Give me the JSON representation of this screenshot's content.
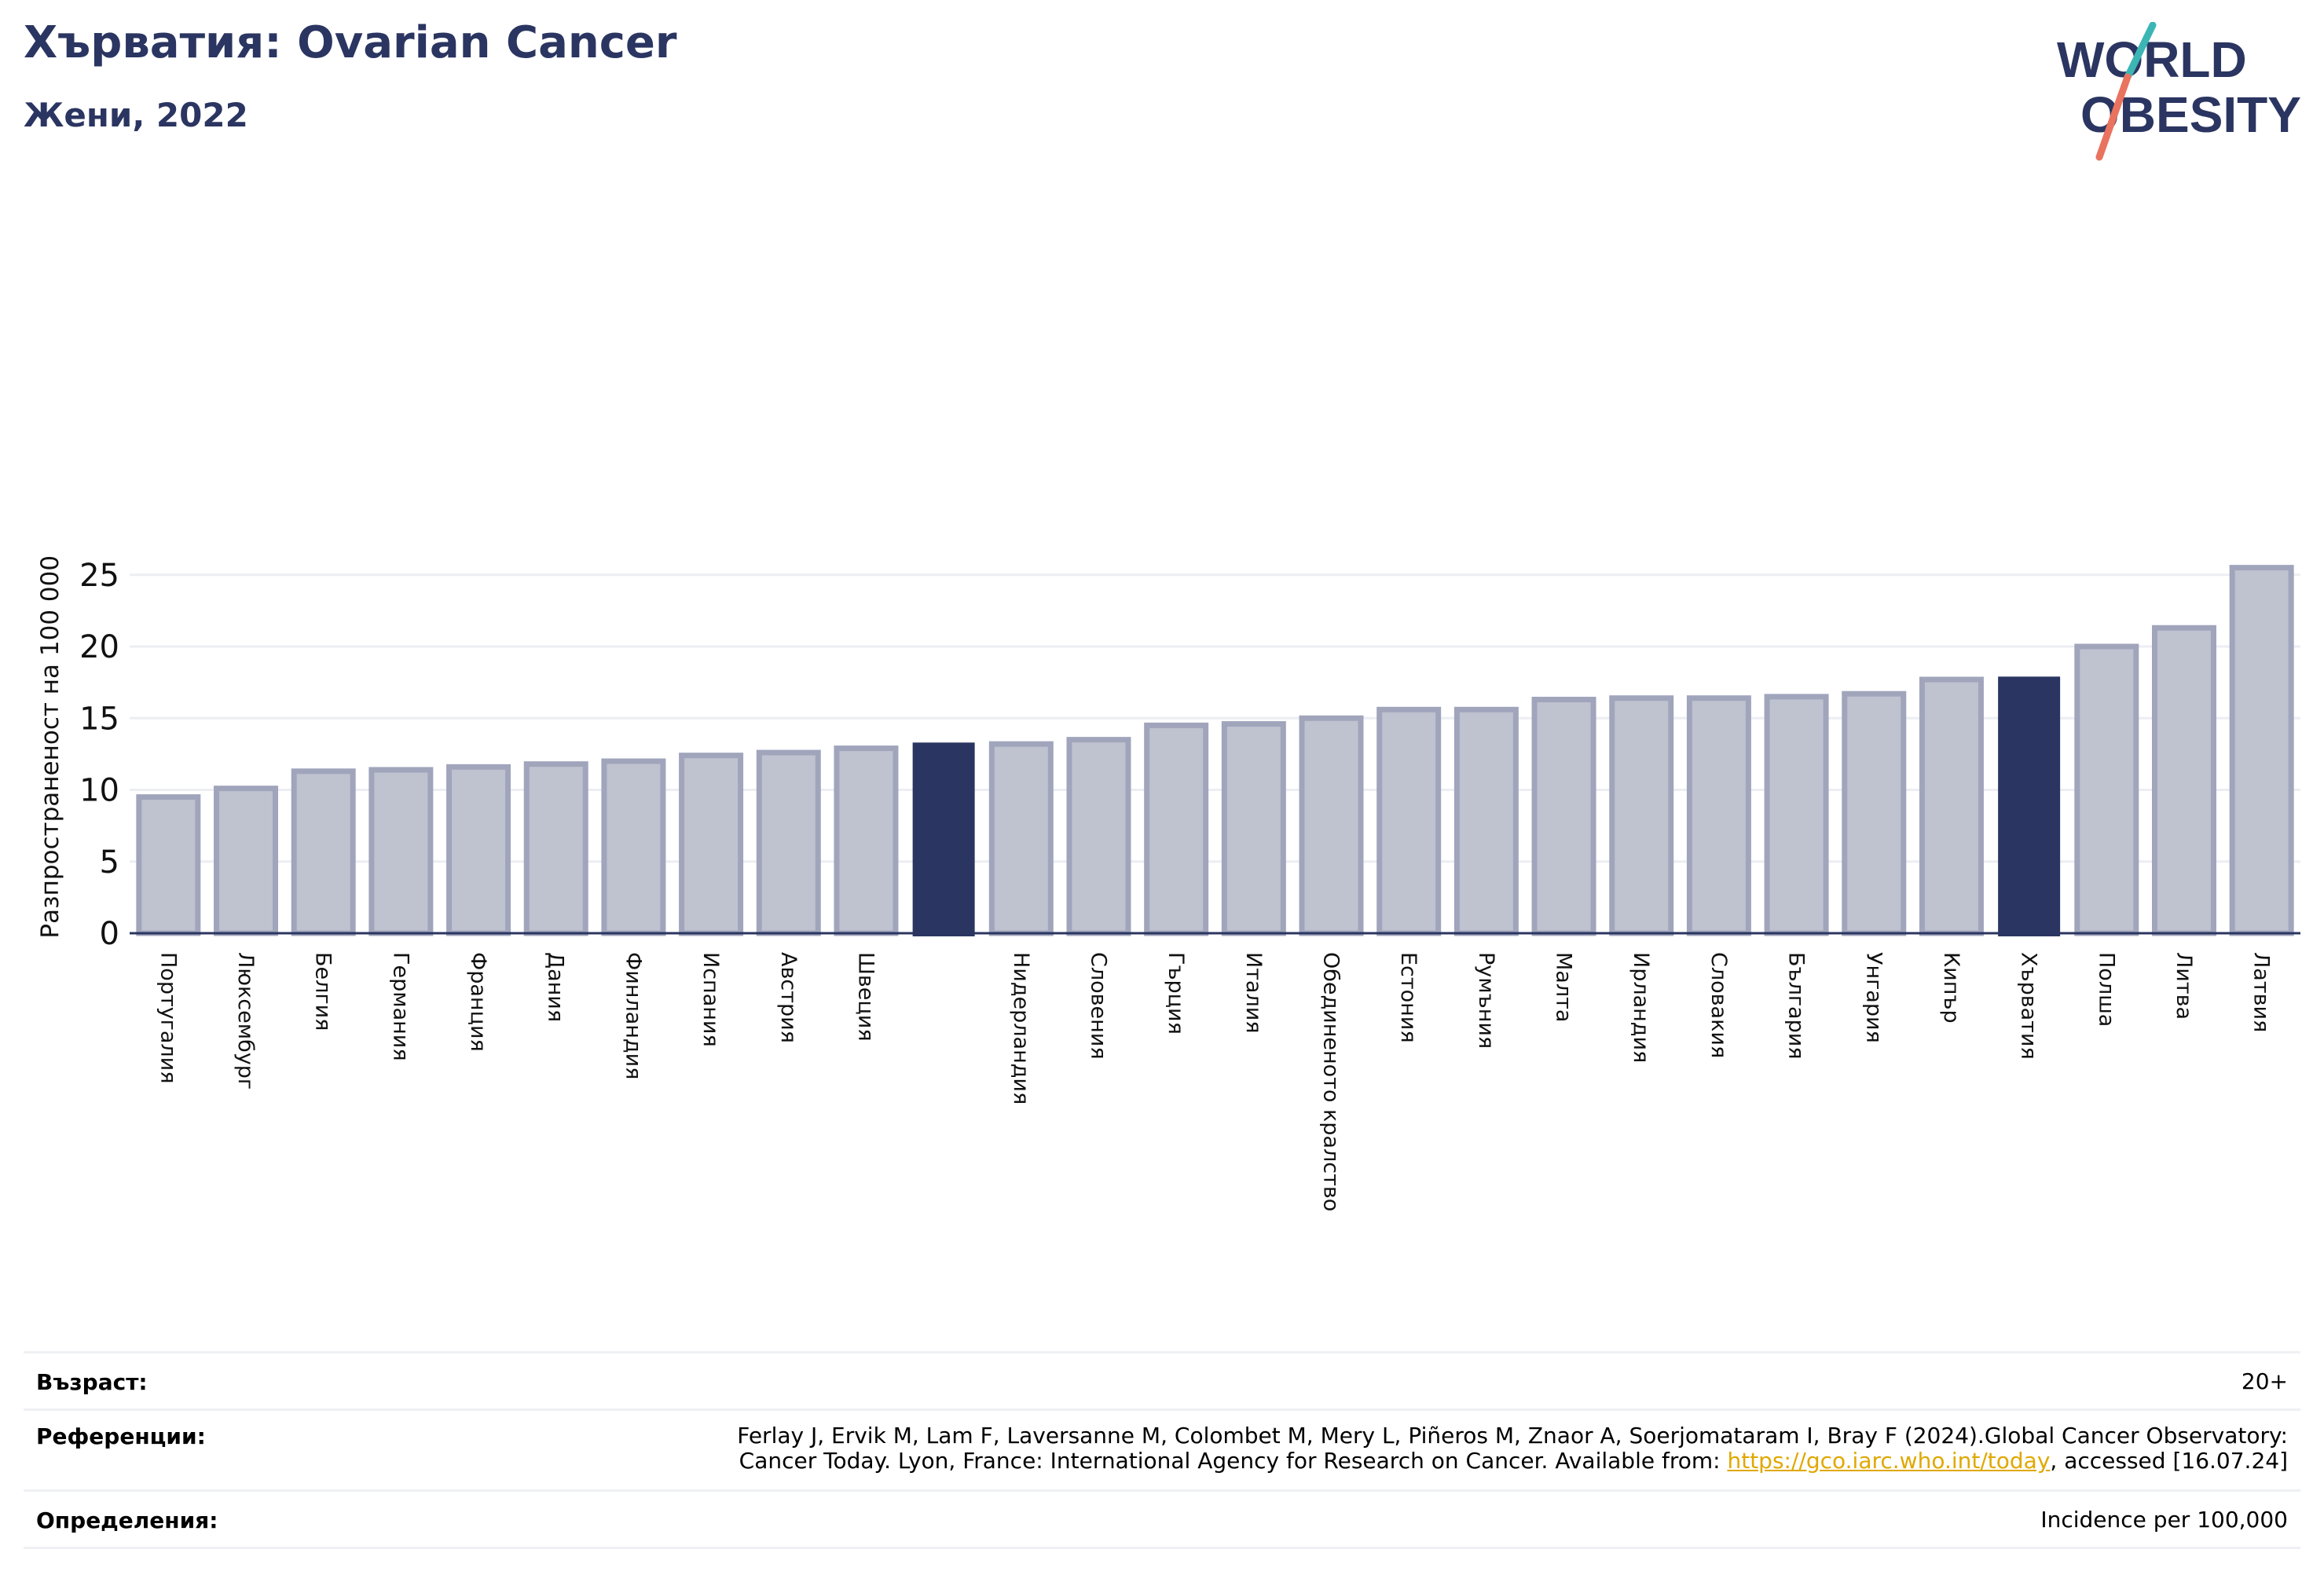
{
  "header": {
    "title": "Хърватия: Ovarian Cancer",
    "subtitle": "Жени, 2022"
  },
  "logo": {
    "line1": "WORLD",
    "line2": "OBESITY",
    "colors": {
      "text": "#2b3561",
      "slash_top": "#3bb6b5",
      "slash_bottom": "#e9735f"
    }
  },
  "chart_data": {
    "type": "bar",
    "ylabel": "Разпространеност  на 100 000",
    "ylim": [
      0,
      26.5
    ],
    "yticks": [
      0,
      5,
      10,
      15,
      20,
      25
    ],
    "grid": true,
    "categories": [
      "Португалия",
      "Люксембург",
      "Белгия",
      "Германия",
      "Франция",
      "Дания",
      "Финландия",
      "Испания",
      "Австрия",
      "Швеция",
      "",
      "Нидерландия",
      "Словения",
      "Гърция",
      "Италия",
      "Обединеното кралство",
      "Естония",
      "Румъния",
      "Малта",
      "Ирландия",
      "Словакия",
      "България",
      "Унгария",
      "Кипър",
      "Хърватия",
      "Полша",
      "Литва",
      "Латвия"
    ],
    "values": [
      9.5,
      10.1,
      11.3,
      11.4,
      11.6,
      11.8,
      12.0,
      12.4,
      12.6,
      12.9,
      13.3,
      13.2,
      13.5,
      14.5,
      14.6,
      15.0,
      15.6,
      15.6,
      16.3,
      16.4,
      16.4,
      16.5,
      16.7,
      17.7,
      17.9,
      20.0,
      21.3,
      25.5
    ],
    "highlighted": [
      10,
      24
    ],
    "colors": {
      "bar": "#bfc2cf",
      "bar_border": "#a0a5bc",
      "highlight": "#2b3561",
      "grid": "#eceef3",
      "axis": "#2b3561"
    }
  },
  "footer": {
    "age_label": "Възраст:",
    "age_value": "20+",
    "refs_label": "Референции:",
    "refs_line1": "Ferlay J, Ervik M, Lam F, Laversanne M, Colombet M, Mery L, Piñeros M, Znaor A, Soerjomataram I, Bray F (2024).Global Cancer Observatory:",
    "refs_line2_pre": "Cancer Today. Lyon, France: International Agency for Research on Cancer. Available from: ",
    "refs_link": "https://gco.iarc.who.int/today",
    "refs_line2_post": ", accessed [16.07.24]",
    "def_label": "Определения:",
    "def_value": "Incidence per 100,000"
  }
}
